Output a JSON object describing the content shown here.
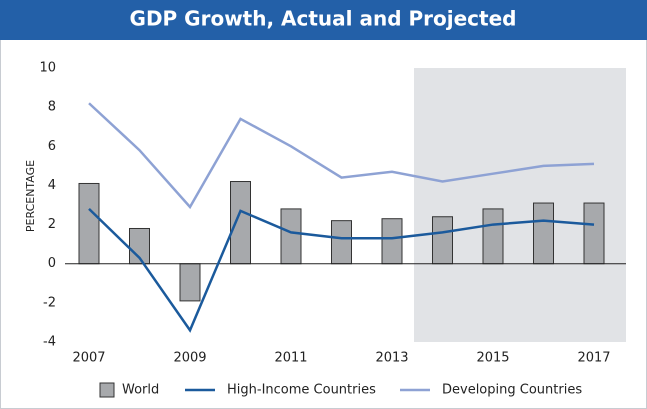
{
  "chart_data": {
    "type": "bar+line",
    "title": "GDP Growth, Actual and Projected",
    "y_label": "PERCENTAGE",
    "categories": [
      "2007",
      null,
      "2009",
      null,
      "2011",
      null,
      "2013",
      null,
      "2015",
      null,
      "2017"
    ],
    "series": [
      {
        "name": "World",
        "type": "bar",
        "color": "#a7a9ac",
        "values": [
          4.1,
          1.8,
          -1.9,
          4.2,
          2.8,
          2.2,
          2.3,
          2.4,
          2.8,
          3.1,
          3.1
        ]
      },
      {
        "name": "High-Income Countries",
        "type": "line",
        "color": "#1b5a9c",
        "values": [
          2.8,
          0.3,
          -3.4,
          2.7,
          1.6,
          1.3,
          1.3,
          1.6,
          2.0,
          2.2,
          2.0
        ]
      },
      {
        "name": "Developing Countries",
        "type": "line",
        "color": "#8ea2d4",
        "values": [
          8.2,
          5.8,
          2.9,
          7.4,
          6.0,
          4.4,
          4.7,
          4.2,
          4.6,
          5.0,
          5.1
        ]
      }
    ],
    "ylim": [
      -4,
      10
    ],
    "yticks": [
      -4,
      -2,
      0,
      2,
      4,
      6,
      8,
      10
    ],
    "grid": false
  }
}
